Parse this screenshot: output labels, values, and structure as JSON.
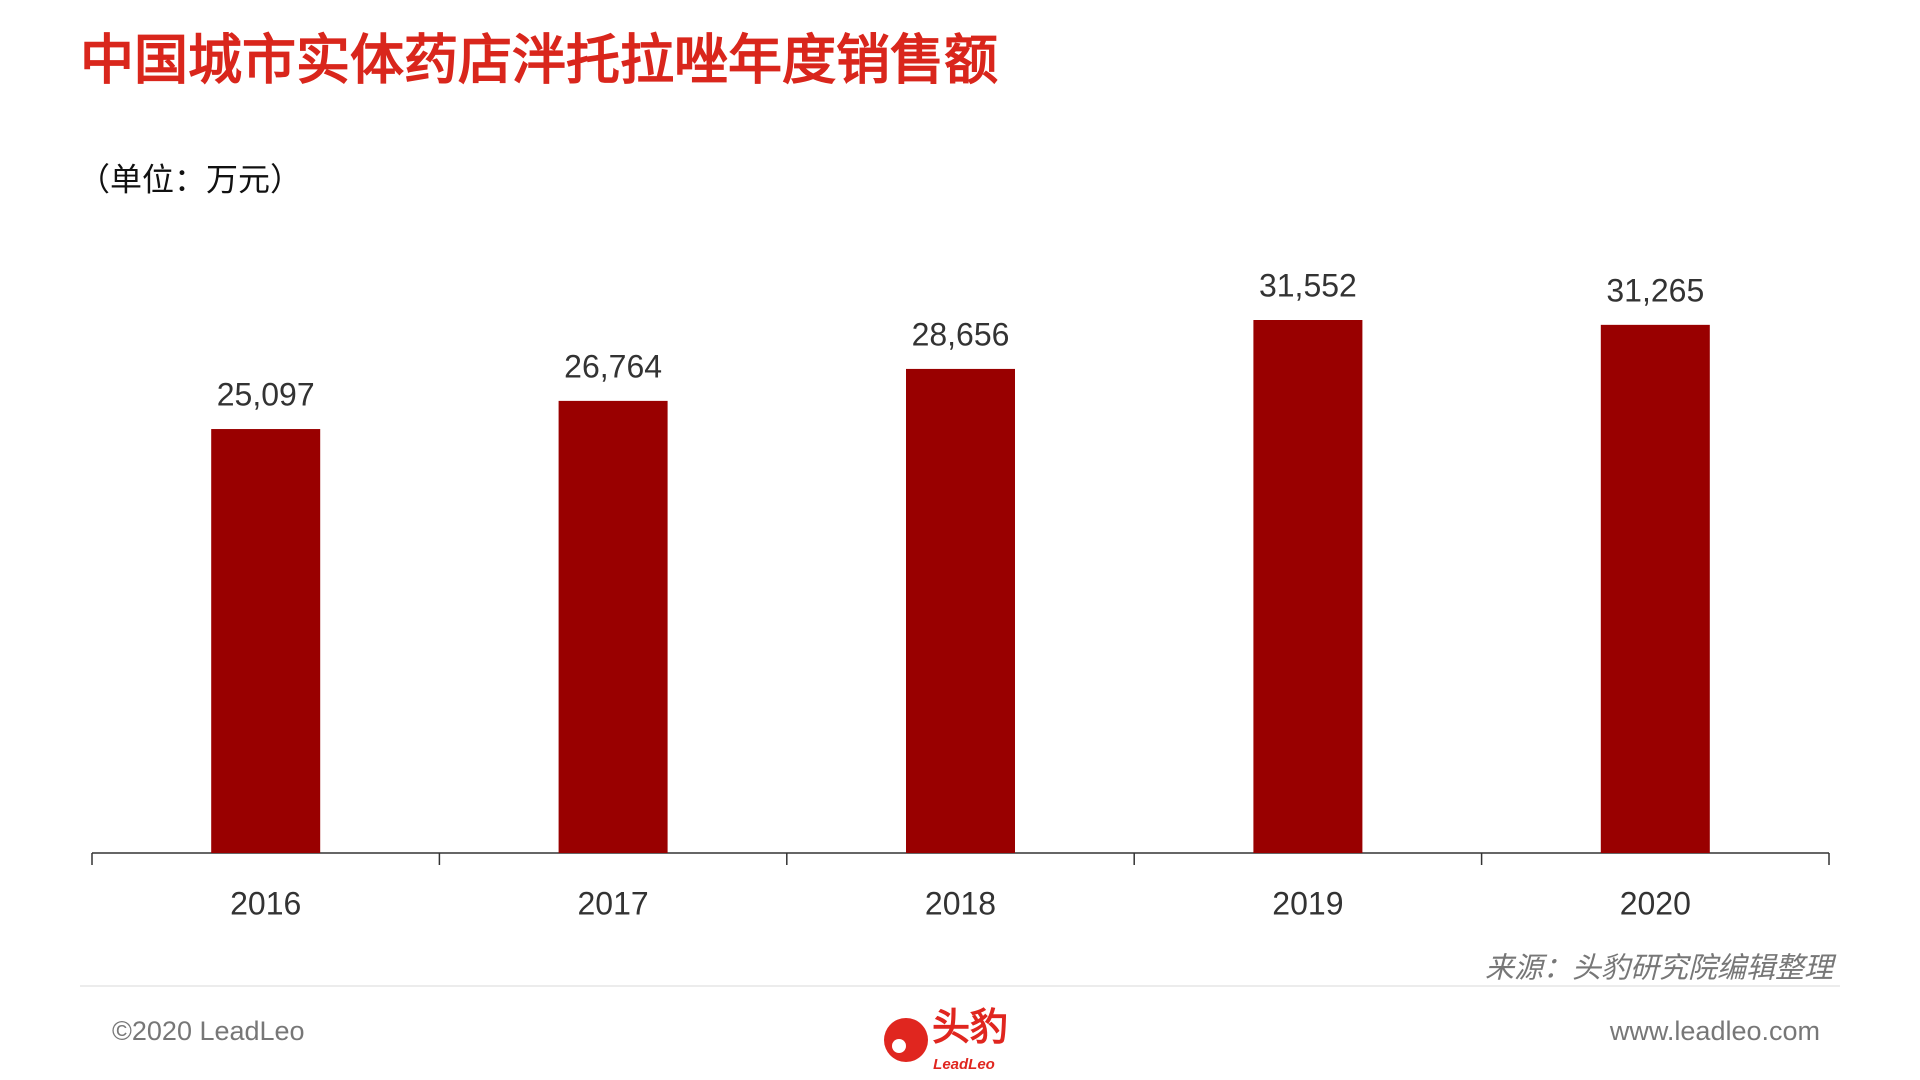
{
  "chart_data": {
    "type": "bar",
    "title": "中国城市实体药店泮托拉唑年度销售额",
    "subtitle": "（单位：万元）",
    "categories": [
      "2016",
      "2017",
      "2018",
      "2019",
      "2020"
    ],
    "values": [
      25097,
      26764,
      28656,
      31552,
      31265
    ],
    "value_labels": [
      "25,097",
      "26,764",
      "28,656",
      "31,552",
      "31,265"
    ],
    "color": "#990000",
    "source": "来源：头豹研究院编辑整理"
  },
  "footer": {
    "copyright": "©2020 LeadLeo",
    "logo": "头豹",
    "logo_sub": "LeadLeo",
    "website": "www.leadleo.com"
  }
}
